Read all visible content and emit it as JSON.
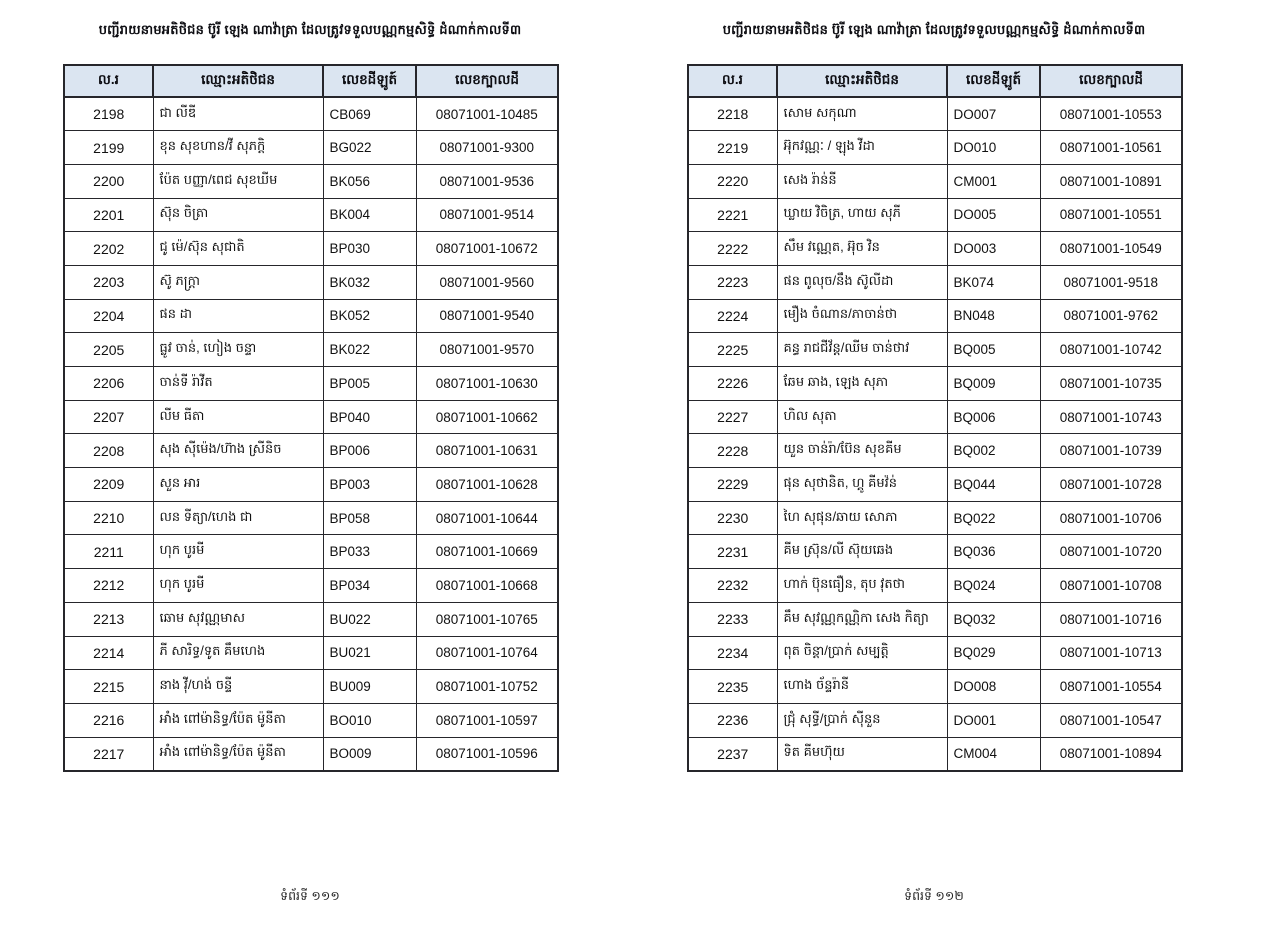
{
  "header_bg_color": "#dbe5f1",
  "border_color": "#26262b",
  "columns": [
    "ល.រ",
    "ឈ្មោះអតិថិជន",
    "លេខដីឡូត៍",
    "លេខក្បាលដី"
  ],
  "pages": [
    {
      "title": "បញ្ជីរាយនាមអតិថិជន ប៊ូរី ឡេង ណាវ៉ាត្រា ដែលត្រូវទទួលបណ្ណកម្មសិទ្ធិ ដំណាក់កាលទី៣",
      "footer": "ទំព័រទី ១១១",
      "rows": [
        [
          "2198",
          "ជា លីឌី",
          "CB069",
          "08071001-10485"
        ],
        [
          "2199",
          "ខុន សុខហាន/វី សុភក្តិ",
          "BG022",
          "08071001-9300"
        ],
        [
          "2200",
          "ប៉ែត បញ្ញា/ពេជ សុខឃីម",
          "BK056",
          "08071001-9536"
        ],
        [
          "2201",
          "ស៊ុន ចិត្រា",
          "BK004",
          "08071001-9514"
        ],
        [
          "2202",
          "ជូ ម៉េ/ស៊ុន សុជាតិ",
          "BP030",
          "08071001-10672"
        ],
        [
          "2203",
          "ស៊ូ ភក្រ្តា",
          "BK032",
          "08071001-9560"
        ],
        [
          "2204",
          "ផន ដា",
          "BK052",
          "08071001-9540"
        ],
        [
          "2205",
          "ធ្លូវ ចាន់, ហៀង ចន្ទា",
          "BK022",
          "08071001-9570"
        ],
        [
          "2206",
          "ចាន់ទី រ៉ាវីត",
          "BP005",
          "08071001-10630"
        ],
        [
          "2207",
          "លីម ធីតា",
          "BP040",
          "08071001-10662"
        ],
        [
          "2208",
          "សុង ស៊ីម៉េង/ហ៊ាង ស្រីនិច",
          "BP006",
          "08071001-10631"
        ],
        [
          "2209",
          "សួន អារ",
          "BP003",
          "08071001-10628"
        ],
        [
          "2210",
          "លន ទីត្យា/ហេង ជា",
          "BP058",
          "08071001-10644"
        ],
        [
          "2211",
          "ហុក បូរមី",
          "BP033",
          "08071001-10669"
        ],
        [
          "2212",
          "ហុក បូរមី",
          "BP034",
          "08071001-10668"
        ],
        [
          "2213",
          "ឆោម សុវណ្ណមាស",
          "BU022",
          "08071001-10765"
        ],
        [
          "2214",
          "ភី សារិទ្ធ/ទូត គឹមហេង",
          "BU021",
          "08071001-10764"
        ],
        [
          "2215",
          "នាង វ៉ី/ហង់ ចន្ទី",
          "BU009",
          "08071001-10752"
        ],
        [
          "2216",
          "អាំង ពៅម៉ានិទ្ធ/ប៉ែត ម៉ូនីតា",
          "BO010",
          "08071001-10597"
        ],
        [
          "2217",
          "អាំង ពៅម៉ានិទ្ធ/ប៉ែត ម៉ូនីតា",
          "BO009",
          "08071001-10596"
        ]
      ]
    },
    {
      "title": "បញ្ជីរាយនាមអតិថិជន ប៊ូរី ឡេង ណាវ៉ាត្រា ដែលត្រូវទទួលបណ្ណកម្មសិទ្ធិ ដំណាក់កាលទី៣",
      "footer": "ទំព័រទី ១១២",
      "rows": [
        [
          "2218",
          "សោម សកុណា",
          "DO007",
          "08071001-10553"
        ],
        [
          "2219",
          "អ៊ុកវណ្ណៈ / ឡុង វីដា",
          "DO010",
          "08071001-10561"
        ],
        [
          "2220",
          "សេង រ៉ាន់នី",
          "CM001",
          "08071001-10891"
        ],
        [
          "2221",
          "ឃ្លាយ វិចិត្រ, ហាយ សុភី",
          "DO005",
          "08071001-10551"
        ],
        [
          "2222",
          "សឹម វណ្ណេត, អ៊ុច វិន",
          "DO003",
          "08071001-10549"
        ],
        [
          "2223",
          "ផន ពូលុច/នឹង ស៊ូលីដា",
          "BK074",
          "08071001-9518"
        ],
        [
          "2224",
          "មឿង ចំណាន/ភាចាន់ថា",
          "BN048",
          "08071001-9762"
        ],
        [
          "2225",
          "គន្ធ រាជជីវ័ន្ត/ឈីម ចាន់ថាវ",
          "BQ005",
          "08071001-10742"
        ],
        [
          "2226",
          "ឆែម ឆាង, ឡេង សុភា",
          "BQ009",
          "08071001-10735"
        ],
        [
          "2227",
          "ហិល សុតា",
          "BQ006",
          "08071001-10743"
        ],
        [
          "2228",
          "យួន ចាន់រ៉ា/ប៊ែន សុខគីម",
          "BQ002",
          "08071001-10739"
        ],
        [
          "2229",
          "ផុន សុថានិត, ហ្គូ គីមវ៉ន់",
          "BQ044",
          "08071001-10728"
        ],
        [
          "2230",
          "ហៃ សុផុន/ឆាយ សោភា",
          "BQ022",
          "08071001-10706"
        ],
        [
          "2231",
          "គីម ស្រ៊ុន/លី ស៊ុយឆេង",
          "BQ036",
          "08071001-10720"
        ],
        [
          "2232",
          "ហាក់ ប៊ុនធឿន, តុប វុតថា",
          "BQ024",
          "08071001-10708"
        ],
        [
          "2233",
          "គឹម សុវណ្ណកណ្ណិកា សេង កិត្យា",
          "BQ032",
          "08071001-10716"
        ],
        [
          "2234",
          "ពុត ចិន្តា/ប្រាក់ សម្បត្តិ",
          "BQ029",
          "08071001-10713"
        ],
        [
          "2235",
          "ហោង ច័ន្ទរ៉ានី",
          "DO008",
          "08071001-10554"
        ],
        [
          "2236",
          "ជ្រុំ សុទ្ធី/ប្រាក់ ស៊ីនួន",
          "DO001",
          "08071001-10547"
        ],
        [
          "2237",
          "ទិត គីមហ៊ុយ",
          "CM004",
          "08071001-10894"
        ]
      ]
    }
  ]
}
